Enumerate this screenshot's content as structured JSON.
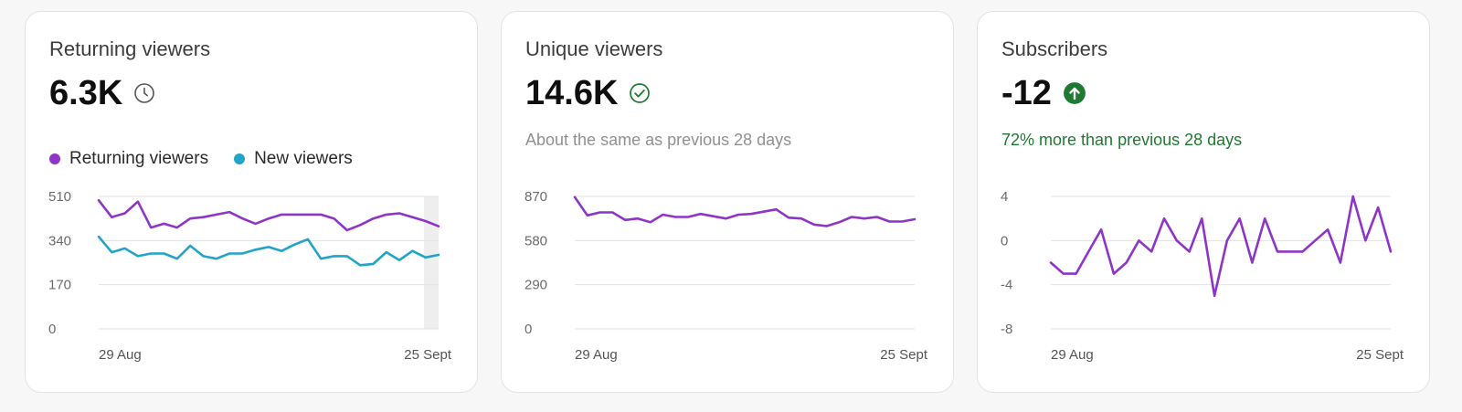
{
  "cards": [
    {
      "title": "Returning viewers",
      "value": "6.3K",
      "icon": "clock-icon",
      "legend": [
        {
          "label": "Returning viewers",
          "color": "#8e35c7"
        },
        {
          "label": "New viewers",
          "color": "#21a4c8"
        }
      ]
    },
    {
      "title": "Unique viewers",
      "value": "14.6K",
      "icon": "check-circle-icon",
      "subtext": "About the same as previous 28 days",
      "subtext_color": "#909090"
    },
    {
      "title": "Subscribers",
      "value": "-12",
      "icon": "arrow-up-circle-icon",
      "icon_color": "#1e7a32",
      "subtext": "72% more than previous 28 days",
      "subtext_color": "#1e7a32"
    }
  ],
  "chart_data": [
    {
      "type": "line",
      "x_labels": [
        "29 Aug",
        "25 Sept"
      ],
      "y_ticks": [
        0,
        170,
        340,
        510
      ],
      "ylim": [
        0,
        510
      ],
      "grid": true,
      "shaded_last_point": true,
      "series": [
        {
          "name": "Returning viewers",
          "color": "#8e35c7",
          "values": [
            495,
            430,
            445,
            490,
            390,
            405,
            390,
            425,
            430,
            440,
            450,
            425,
            405,
            425,
            440,
            440,
            440,
            440,
            425,
            380,
            400,
            425,
            440,
            445,
            430,
            415,
            395
          ]
        },
        {
          "name": "New viewers",
          "color": "#21a4c8",
          "values": [
            355,
            295,
            310,
            280,
            290,
            290,
            270,
            320,
            280,
            270,
            290,
            290,
            305,
            315,
            300,
            325,
            345,
            270,
            280,
            280,
            245,
            250,
            295,
            265,
            300,
            275,
            285
          ]
        }
      ]
    },
    {
      "type": "line",
      "x_labels": [
        "29 Aug",
        "25 Sept"
      ],
      "y_ticks": [
        0,
        290,
        580,
        870
      ],
      "ylim": [
        0,
        870
      ],
      "grid": true,
      "series": [
        {
          "name": "Unique viewers",
          "color": "#8e35c7",
          "values": [
            865,
            745,
            765,
            765,
            715,
            725,
            700,
            750,
            735,
            735,
            755,
            740,
            725,
            750,
            755,
            770,
            785,
            730,
            725,
            685,
            675,
            700,
            735,
            725,
            735,
            705,
            705,
            720
          ]
        }
      ]
    },
    {
      "type": "line",
      "x_labels": [
        "29 Aug",
        "25 Sept"
      ],
      "y_ticks": [
        -8,
        -4,
        0,
        4
      ],
      "ylim": [
        -8,
        4
      ],
      "grid": true,
      "series": [
        {
          "name": "Subscribers",
          "color": "#8e35c7",
          "values": [
            -2,
            -3,
            -3,
            -1,
            1,
            -3,
            -2,
            0,
            -1,
            2,
            0,
            -1,
            2,
            -5,
            0,
            2,
            -2,
            2,
            -1,
            -1,
            -1,
            0,
            1,
            -2,
            4,
            0,
            3,
            -1
          ]
        }
      ]
    }
  ]
}
